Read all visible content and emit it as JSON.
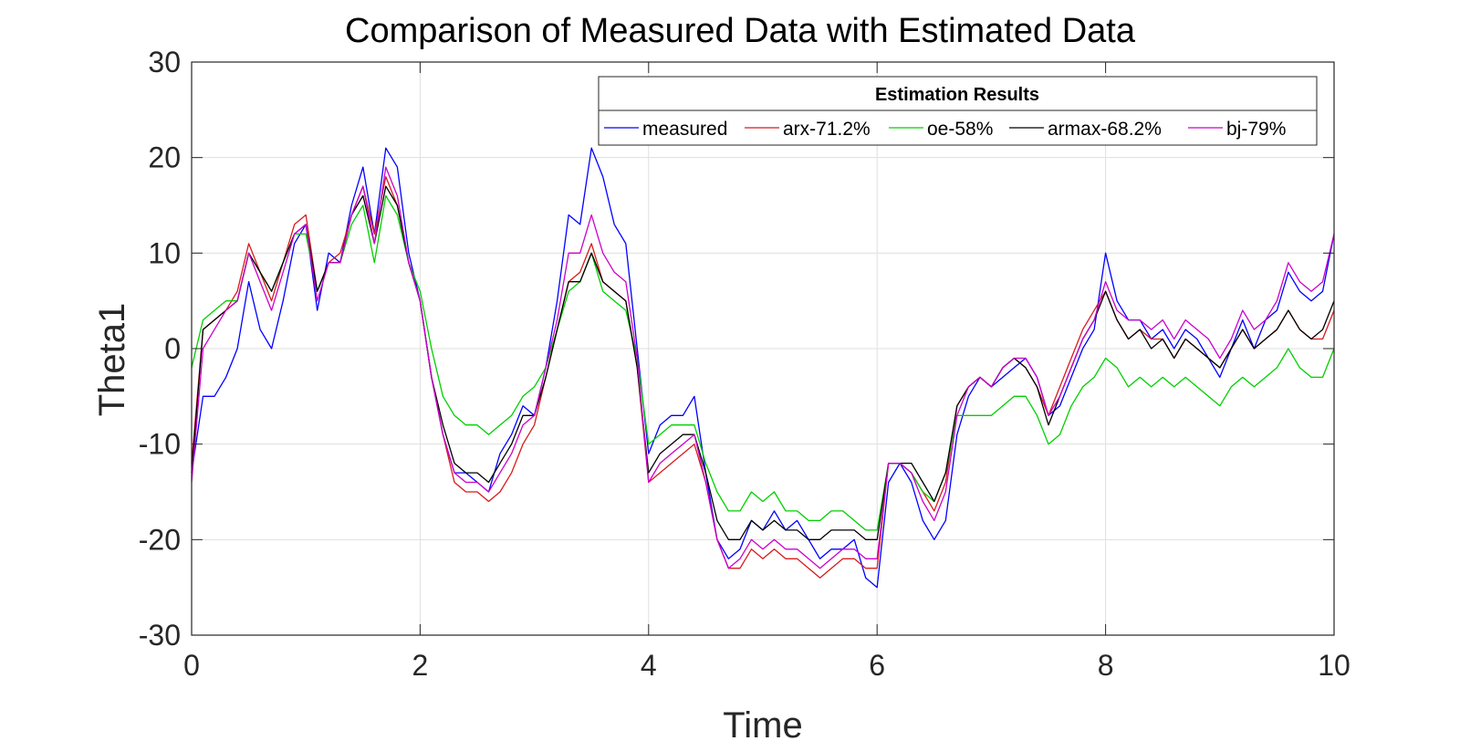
{
  "chart_data": {
    "type": "line",
    "title": "Comparison of Measured Data with Estimated Data",
    "xlabel": "Time",
    "ylabel": "Theta1",
    "xlim": [
      0,
      10
    ],
    "ylim": [
      -30,
      30
    ],
    "xticks": [
      0,
      2,
      4,
      6,
      8,
      10
    ],
    "yticks": [
      -30,
      -20,
      -10,
      0,
      10,
      20,
      30
    ],
    "grid": true,
    "legend": {
      "title": "Estimation Results",
      "placement": "top-right",
      "entries": [
        "measured",
        "arx-71.2%",
        "oe-58%",
        "armax-68.2%",
        "bj-79%"
      ]
    },
    "x": [
      0,
      0.1,
      0.2,
      0.3,
      0.4,
      0.5,
      0.6,
      0.7,
      0.8,
      0.9,
      1.0,
      1.1,
      1.2,
      1.3,
      1.4,
      1.5,
      1.6,
      1.7,
      1.8,
      1.9,
      2.0,
      2.1,
      2.2,
      2.3,
      2.4,
      2.5,
      2.6,
      2.7,
      2.8,
      2.9,
      3.0,
      3.1,
      3.2,
      3.3,
      3.4,
      3.5,
      3.6,
      3.7,
      3.8,
      3.9,
      4.0,
      4.1,
      4.2,
      4.3,
      4.4,
      4.5,
      4.6,
      4.7,
      4.8,
      4.9,
      5.0,
      5.1,
      5.2,
      5.3,
      5.4,
      5.5,
      5.6,
      5.7,
      5.8,
      5.9,
      6.0,
      6.1,
      6.2,
      6.3,
      6.4,
      6.5,
      6.6,
      6.7,
      6.8,
      6.9,
      7.0,
      7.1,
      7.2,
      7.3,
      7.4,
      7.5,
      7.6,
      7.7,
      7.8,
      7.9,
      8.0,
      8.1,
      8.2,
      8.3,
      8.4,
      8.5,
      8.6,
      8.7,
      8.8,
      8.9,
      9.0,
      9.1,
      9.2,
      9.3,
      9.4,
      9.5,
      9.6,
      9.7,
      9.8,
      9.9,
      10.0
    ],
    "series": [
      {
        "name": "measured",
        "color": "#0000ff",
        "values": [
          -13,
          -5,
          -5,
          -3,
          0,
          7,
          2,
          0,
          5,
          11,
          13,
          4,
          10,
          9,
          15,
          19,
          12,
          21,
          19,
          10,
          5,
          -3,
          -9,
          -13,
          -13,
          -14,
          -15,
          -11,
          -9,
          -6,
          -7,
          -2,
          5,
          14,
          13,
          21,
          18,
          13,
          11,
          0,
          -11,
          -8,
          -7,
          -7,
          -5,
          -13,
          -20,
          -22,
          -21,
          -18,
          -19,
          -17,
          -19,
          -18,
          -20,
          -22,
          -21,
          -21,
          -20,
          -24,
          -25,
          -14,
          -12,
          -14,
          -18,
          -20,
          -18,
          -9,
          -5,
          -3,
          -4,
          -3,
          -2,
          -1,
          -3,
          -7,
          -6,
          -3,
          0,
          2,
          10,
          5,
          3,
          3,
          1,
          2,
          0,
          2,
          1,
          -1,
          -3,
          0,
          3,
          0,
          3,
          4,
          8,
          6,
          5,
          6,
          12
        ]
      },
      {
        "name": "arx-71.2%",
        "color": "#d81b1b",
        "values": [
          -12,
          2,
          3,
          4,
          6,
          11,
          8,
          5,
          9,
          13,
          14,
          6,
          9,
          10,
          14,
          17,
          12,
          18,
          15,
          9,
          5,
          -3,
          -9,
          -14,
          -15,
          -15,
          -16,
          -15,
          -13,
          -10,
          -8,
          -3,
          2,
          7,
          8,
          11,
          7,
          6,
          5,
          -2,
          -14,
          -13,
          -12,
          -11,
          -10,
          -14,
          -20,
          -23,
          -23,
          -21,
          -22,
          -21,
          -22,
          -22,
          -23,
          -24,
          -23,
          -22,
          -22,
          -23,
          -23,
          -12,
          -12,
          -13,
          -15,
          -17,
          -14,
          -6,
          -4,
          -3,
          -4,
          -2,
          -1,
          -2,
          -4,
          -7,
          -4,
          -1,
          2,
          4,
          6,
          3,
          1,
          2,
          1,
          1,
          -1,
          1,
          0,
          -1,
          -2,
          0,
          2,
          0,
          1,
          2,
          4,
          2,
          1,
          1,
          4
        ]
      },
      {
        "name": "oe-58%",
        "color": "#00d000",
        "values": [
          -2,
          3,
          4,
          5,
          5,
          10,
          8,
          6,
          9,
          12,
          12,
          6,
          9,
          9,
          13,
          15,
          9,
          16,
          14,
          9,
          6,
          0,
          -5,
          -7,
          -8,
          -8,
          -9,
          -8,
          -7,
          -5,
          -4,
          -2,
          2,
          6,
          7,
          10,
          6,
          5,
          4,
          -1,
          -10,
          -9,
          -8,
          -8,
          -8,
          -12,
          -15,
          -17,
          -17,
          -15,
          -16,
          -15,
          -17,
          -17,
          -18,
          -18,
          -17,
          -17,
          -18,
          -19,
          -19,
          -12,
          -12,
          -13,
          -15,
          -16,
          -13,
          -7,
          -7,
          -7,
          -7,
          -6,
          -5,
          -5,
          -7,
          -10,
          -9,
          -6,
          -4,
          -3,
          -1,
          -2,
          -4,
          -3,
          -4,
          -3,
          -4,
          -3,
          -4,
          -5,
          -6,
          -4,
          -3,
          -4,
          -3,
          -2,
          0,
          -2,
          -3,
          -3,
          0
        ]
      },
      {
        "name": "armax-68.2%",
        "color": "#000000",
        "values": [
          -13,
          2,
          3,
          4,
          5,
          10,
          8,
          6,
          9,
          12,
          13,
          6,
          9,
          9,
          14,
          16,
          11,
          17,
          15,
          9,
          5,
          -3,
          -8,
          -12,
          -13,
          -13,
          -14,
          -12,
          -10,
          -7,
          -7,
          -3,
          2,
          7,
          7,
          10,
          7,
          6,
          5,
          -2,
          -13,
          -11,
          -10,
          -9,
          -9,
          -13,
          -18,
          -20,
          -20,
          -18,
          -19,
          -18,
          -19,
          -19,
          -20,
          -20,
          -19,
          -19,
          -19,
          -20,
          -20,
          -12,
          -12,
          -12,
          -14,
          -16,
          -13,
          -6,
          -4,
          -3,
          -4,
          -2,
          -1,
          -2,
          -4,
          -8,
          -5,
          -2,
          1,
          3,
          6,
          3,
          1,
          2,
          0,
          1,
          -1,
          1,
          0,
          -1,
          -2,
          0,
          2,
          0,
          1,
          2,
          4,
          2,
          1,
          2,
          5
        ]
      },
      {
        "name": "bj-79%",
        "color": "#cc00cc",
        "values": [
          -14,
          0,
          2,
          4,
          5,
          10,
          7,
          4,
          8,
          12,
          13,
          5,
          9,
          9,
          14,
          17,
          11,
          19,
          16,
          9,
          5,
          -3,
          -9,
          -13,
          -14,
          -14,
          -15,
          -13,
          -11,
          -8,
          -7,
          -2,
          3,
          10,
          10,
          14,
          10,
          8,
          7,
          -1,
          -14,
          -12,
          -11,
          -10,
          -9,
          -14,
          -20,
          -23,
          -22,
          -20,
          -21,
          -20,
          -21,
          -21,
          -22,
          -23,
          -22,
          -21,
          -21,
          -22,
          -22,
          -12,
          -12,
          -13,
          -16,
          -18,
          -15,
          -7,
          -4,
          -3,
          -4,
          -2,
          -1,
          -1,
          -3,
          -7,
          -5,
          -2,
          1,
          3,
          7,
          4,
          3,
          3,
          2,
          3,
          1,
          3,
          2,
          1,
          -1,
          1,
          4,
          2,
          3,
          5,
          9,
          7,
          6,
          7,
          12
        ]
      }
    ]
  }
}
